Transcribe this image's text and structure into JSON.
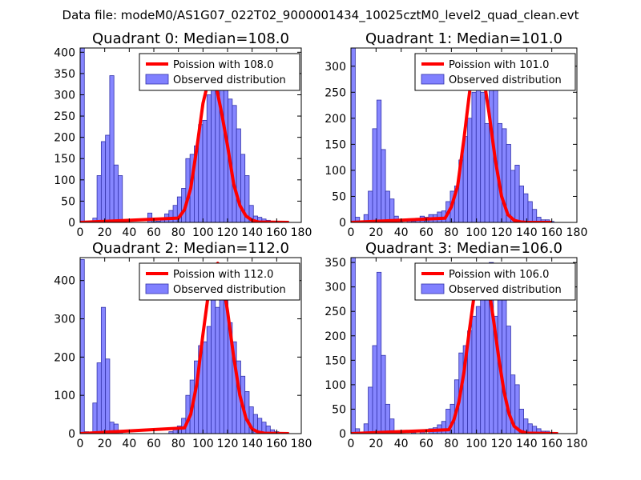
{
  "suptitle": "Data file: modeM0/AS1G07_022T02_9000001434_10025cztM0_level2_quad_clean.evt",
  "colors": {
    "hist_fill": "#8080ff",
    "hist_edge": "#3333aa",
    "poisson_line": "#ff0000",
    "axes": "#000000",
    "background": "#ffffff"
  },
  "chart_data": [
    {
      "type": "bar",
      "title": "Quadrant 0: Median=108.0",
      "xlim": [
        0,
        180
      ],
      "ylim": [
        0,
        410
      ],
      "xticks": [
        0,
        20,
        40,
        60,
        80,
        100,
        120,
        140,
        160,
        180
      ],
      "yticks": [
        0,
        50,
        100,
        150,
        200,
        250,
        300,
        350,
        400
      ],
      "legend": [
        "Poission with 108.0",
        "Observed distribution"
      ],
      "legend_location": "upper right",
      "bin_width": 3.44,
      "bin_starts": [
        0,
        3.44,
        10.32,
        13.76,
        17.2,
        20.64,
        24.08,
        27.52,
        30.96,
        55.04,
        58.48,
        61.92,
        65.36,
        68.8,
        72.24,
        75.68,
        79.12,
        82.56,
        86.0,
        89.44,
        92.88,
        96.32,
        99.76,
        103.2,
        106.64,
        110.08,
        113.52,
        116.96,
        120.4,
        123.84,
        127.28,
        130.72,
        134.16,
        137.6,
        141.04,
        144.48,
        147.92,
        151.36,
        154.8,
        158.24
      ],
      "counts": [
        410,
        2,
        10,
        110,
        190,
        205,
        345,
        135,
        110,
        22,
        2,
        3,
        10,
        20,
        28,
        40,
        60,
        80,
        150,
        160,
        180,
        230,
        240,
        300,
        350,
        310,
        330,
        350,
        290,
        275,
        220,
        160,
        110,
        40,
        15,
        12,
        8,
        5,
        2,
        1
      ],
      "poisson": {
        "mean": 108.0,
        "x": [
          0,
          80,
          85,
          90,
          95,
          100,
          105,
          108,
          110,
          115,
          120,
          125,
          130,
          135,
          140,
          145,
          170
        ],
        "y": [
          0,
          10,
          30,
          80,
          175,
          280,
          340,
          345,
          330,
          260,
          180,
          90,
          40,
          15,
          5,
          1,
          0
        ]
      }
    },
    {
      "type": "bar",
      "title": "Quadrant 1: Median=101.0",
      "xlim": [
        0,
        180
      ],
      "ylim": [
        0,
        335
      ],
      "xticks": [
        0,
        20,
        40,
        60,
        80,
        100,
        120,
        140,
        160,
        180
      ],
      "yticks": [
        0,
        50,
        100,
        150,
        200,
        250,
        300
      ],
      "legend": [
        "Poission with 101.0",
        "Observed distribution"
      ],
      "legend_location": "upper right",
      "bin_width": 3.44,
      "bin_starts": [
        0,
        3.44,
        10.32,
        13.76,
        17.2,
        20.64,
        24.08,
        27.52,
        30.96,
        34.4,
        37.84,
        44.72,
        48.16,
        51.6,
        55.04,
        58.48,
        61.92,
        65.36,
        68.8,
        72.24,
        75.68,
        79.12,
        82.56,
        86.0,
        89.44,
        92.88,
        96.32,
        99.76,
        103.2,
        106.64,
        110.08,
        113.52,
        116.96,
        120.4,
        123.84,
        127.28,
        130.72,
        134.16,
        137.6,
        141.04,
        144.48,
        147.92,
        151.36,
        154.8,
        158.24
      ],
      "counts": [
        335,
        10,
        15,
        60,
        180,
        235,
        140,
        60,
        45,
        12,
        5,
        5,
        2,
        8,
        12,
        10,
        15,
        15,
        20,
        22,
        40,
        60,
        70,
        120,
        165,
        200,
        250,
        320,
        250,
        190,
        260,
        320,
        190,
        180,
        150,
        100,
        110,
        70,
        55,
        40,
        25,
        10,
        5,
        5,
        2
      ],
      "poisson": {
        "mean": 101.0,
        "x": [
          0,
          75,
          80,
          85,
          90,
          95,
          100,
          101,
          105,
          110,
          115,
          120,
          125,
          130,
          135,
          140,
          160
        ],
        "y": [
          0,
          8,
          30,
          70,
          160,
          260,
          318,
          320,
          290,
          210,
          120,
          50,
          15,
          4,
          1,
          0,
          0
        ]
      }
    },
    {
      "type": "bar",
      "title": "Quadrant 2: Median=112.0",
      "xlim": [
        0,
        180
      ],
      "ylim": [
        0,
        460
      ],
      "xticks": [
        0,
        20,
        40,
        60,
        80,
        100,
        120,
        140,
        160,
        180
      ],
      "yticks": [
        0,
        100,
        200,
        300,
        400
      ],
      "legend": [
        "Poission with 112.0",
        "Observed distribution"
      ],
      "legend_location": "upper right",
      "bin_width": 3.44,
      "bin_starts": [
        0,
        3.44,
        10.32,
        13.76,
        17.2,
        20.64,
        24.08,
        27.52,
        30.96,
        72.24,
        75.68,
        79.12,
        82.56,
        86.0,
        89.44,
        92.88,
        96.32,
        99.76,
        103.2,
        106.64,
        110.08,
        113.52,
        116.96,
        120.4,
        123.84,
        127.28,
        130.72,
        134.16,
        137.6,
        141.04,
        144.48,
        147.92,
        151.36,
        154.8,
        158.24
      ],
      "counts": [
        455,
        5,
        80,
        185,
        330,
        195,
        30,
        25,
        5,
        5,
        10,
        20,
        40,
        100,
        140,
        190,
        230,
        240,
        280,
        390,
        330,
        400,
        370,
        290,
        240,
        190,
        150,
        110,
        70,
        50,
        40,
        30,
        20,
        10,
        5
      ],
      "poisson": {
        "mean": 112.0,
        "x": [
          0,
          85,
          90,
          95,
          100,
          105,
          110,
          112,
          115,
          120,
          125,
          130,
          135,
          140,
          145,
          150,
          170
        ],
        "y": [
          0,
          15,
          50,
          130,
          260,
          380,
          440,
          445,
          420,
          320,
          200,
          100,
          40,
          12,
          4,
          1,
          0
        ]
      }
    },
    {
      "type": "bar",
      "title": "Quadrant 3: Median=106.0",
      "xlim": [
        0,
        180
      ],
      "ylim": [
        0,
        360
      ],
      "xticks": [
        0,
        20,
        40,
        60,
        80,
        100,
        120,
        140,
        160,
        180
      ],
      "yticks": [
        0,
        50,
        100,
        150,
        200,
        250,
        300,
        350
      ],
      "legend": [
        "Poission with 106.0",
        "Observed distribution"
      ],
      "legend_location": "upper right",
      "bin_width": 3.44,
      "bin_starts": [
        0,
        3.44,
        10.32,
        13.76,
        17.2,
        20.64,
        24.08,
        27.52,
        30.96,
        34.4,
        48.16,
        55.04,
        61.92,
        65.36,
        68.8,
        72.24,
        75.68,
        79.12,
        82.56,
        86.0,
        89.44,
        92.88,
        96.32,
        99.76,
        103.2,
        106.64,
        110.08,
        113.52,
        116.96,
        120.4,
        123.84,
        127.28,
        130.72,
        134.16,
        137.6,
        141.04,
        144.48,
        147.92,
        151.36,
        154.8,
        158.24
      ],
      "counts": [
        360,
        10,
        20,
        95,
        180,
        330,
        160,
        60,
        30,
        5,
        2,
        3,
        10,
        12,
        18,
        25,
        50,
        60,
        110,
        165,
        180,
        210,
        240,
        260,
        300,
        280,
        350,
        240,
        330,
        320,
        220,
        120,
        100,
        50,
        30,
        20,
        15,
        10,
        5,
        5,
        2
      ],
      "poisson": {
        "mean": 106.0,
        "x": [
          0,
          78,
          82,
          86,
          90,
          94,
          98,
          102,
          106,
          110,
          114,
          118,
          122,
          126,
          130,
          135,
          140,
          165
        ],
        "y": [
          0,
          8,
          28,
          65,
          125,
          205,
          280,
          320,
          325,
          295,
          225,
          150,
          85,
          40,
          15,
          5,
          1,
          0
        ]
      }
    }
  ]
}
